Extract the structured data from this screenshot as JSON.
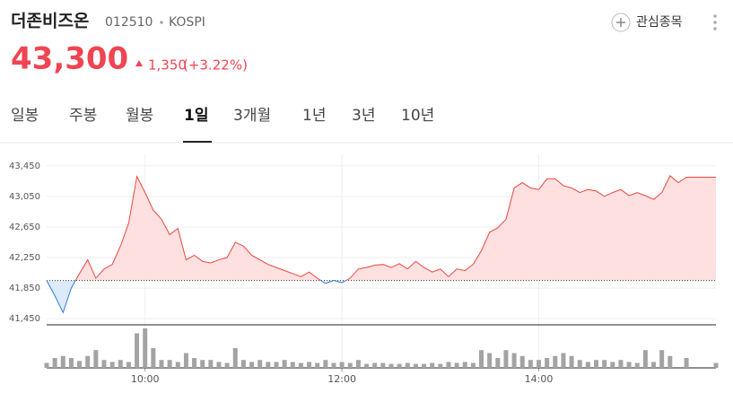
{
  "header": {
    "name": "더존비즈온",
    "code": "012510",
    "market": "KOSPI",
    "watch": "관심종목",
    "price": "43,300",
    "change": "1,350",
    "change_pct": "(+3.22%)"
  },
  "tabs": [
    "일봉",
    "주봉",
    "월봉",
    "1일",
    "3개월",
    "1년",
    "3년",
    "10년"
  ],
  "active_tab": 3,
  "chart_data": {
    "type": "line",
    "x": [
      "09:00",
      "09:05",
      "09:10",
      "09:15",
      "09:20",
      "09:25",
      "09:30",
      "09:35",
      "09:40",
      "09:45",
      "09:50",
      "09:55",
      "10:00",
      "10:05",
      "10:10",
      "10:15",
      "10:20",
      "10:25",
      "10:30",
      "10:35",
      "10:40",
      "10:45",
      "10:50",
      "10:55",
      "11:00",
      "11:05",
      "11:10",
      "11:15",
      "11:20",
      "11:25",
      "11:30",
      "11:35",
      "11:40",
      "11:45",
      "11:50",
      "11:55",
      "12:00",
      "12:05",
      "12:10",
      "12:15",
      "12:20",
      "12:25",
      "12:30",
      "12:35",
      "12:40",
      "12:45",
      "12:50",
      "12:55",
      "13:00",
      "13:05",
      "13:10",
      "13:15",
      "13:20",
      "13:25",
      "13:30",
      "13:35",
      "13:40",
      "13:45",
      "13:50",
      "13:55",
      "14:00",
      "14:05",
      "14:10",
      "14:15",
      "14:20",
      "14:25",
      "14:30",
      "14:35",
      "14:40",
      "14:45",
      "14:50",
      "14:55",
      "15:00",
      "15:05",
      "15:10",
      "15:15",
      "15:20",
      "15:25",
      "15:30",
      "15:48"
    ],
    "values": [
      41950,
      41750,
      41530,
      41850,
      42040,
      42220,
      41980,
      42100,
      42160,
      42400,
      42700,
      43310,
      43100,
      42870,
      42750,
      42550,
      42630,
      42220,
      42280,
      42200,
      42180,
      42220,
      42250,
      42450,
      42400,
      42280,
      42220,
      42160,
      42120,
      42080,
      42040,
      42000,
      42060,
      41980,
      41910,
      41950,
      41920,
      41980,
      42100,
      42120,
      42150,
      42160,
      42120,
      42170,
      42100,
      42200,
      42120,
      42060,
      42100,
      42000,
      42100,
      42080,
      42160,
      42340,
      42580,
      42640,
      42750,
      43160,
      43230,
      43160,
      43140,
      43280,
      43280,
      43190,
      43160,
      43100,
      43140,
      43120,
      43050,
      43100,
      43140,
      43060,
      43100,
      43060,
      43010,
      43100,
      43320,
      43230,
      43300,
      43300
    ],
    "volume": [
      5,
      10,
      12,
      10,
      7,
      12,
      18,
      8,
      6,
      8,
      6,
      35,
      40,
      20,
      8,
      8,
      6,
      15,
      10,
      8,
      8,
      6,
      5,
      20,
      8,
      6,
      8,
      6,
      6,
      8,
      6,
      5,
      6,
      5,
      8,
      5,
      6,
      5,
      8,
      4,
      5,
      5,
      4,
      4,
      5,
      4,
      4,
      5,
      4,
      6,
      5,
      6,
      5,
      18,
      15,
      10,
      18,
      15,
      12,
      8,
      8,
      10,
      12,
      15,
      12,
      8,
      6,
      8,
      8,
      6,
      8,
      6,
      5,
      18,
      6,
      18,
      12,
      null,
      10,
      5
    ],
    "reference_value": 41950,
    "color_up": "#e8473e",
    "color_down": "#2f7bd8",
    "fill_up": "#fde0df",
    "fill_down": "#dcebfb",
    "volume_color": "#a3a3a3",
    "xlim": [
      "09:00",
      "15:48"
    ],
    "xticks": [
      "10:00",
      "12:00",
      "14:00"
    ],
    "ylim": [
      41370,
      43600
    ],
    "yticks": [
      {
        "value": 41450,
        "label": "41,450"
      },
      {
        "value": 41850,
        "label": "41,850"
      },
      {
        "value": 42250,
        "label": "42,250"
      },
      {
        "value": 42650,
        "label": "42,650"
      },
      {
        "value": 43050,
        "label": "43,050"
      },
      {
        "value": 43450,
        "label": "43,450"
      }
    ],
    "grid": true
  }
}
